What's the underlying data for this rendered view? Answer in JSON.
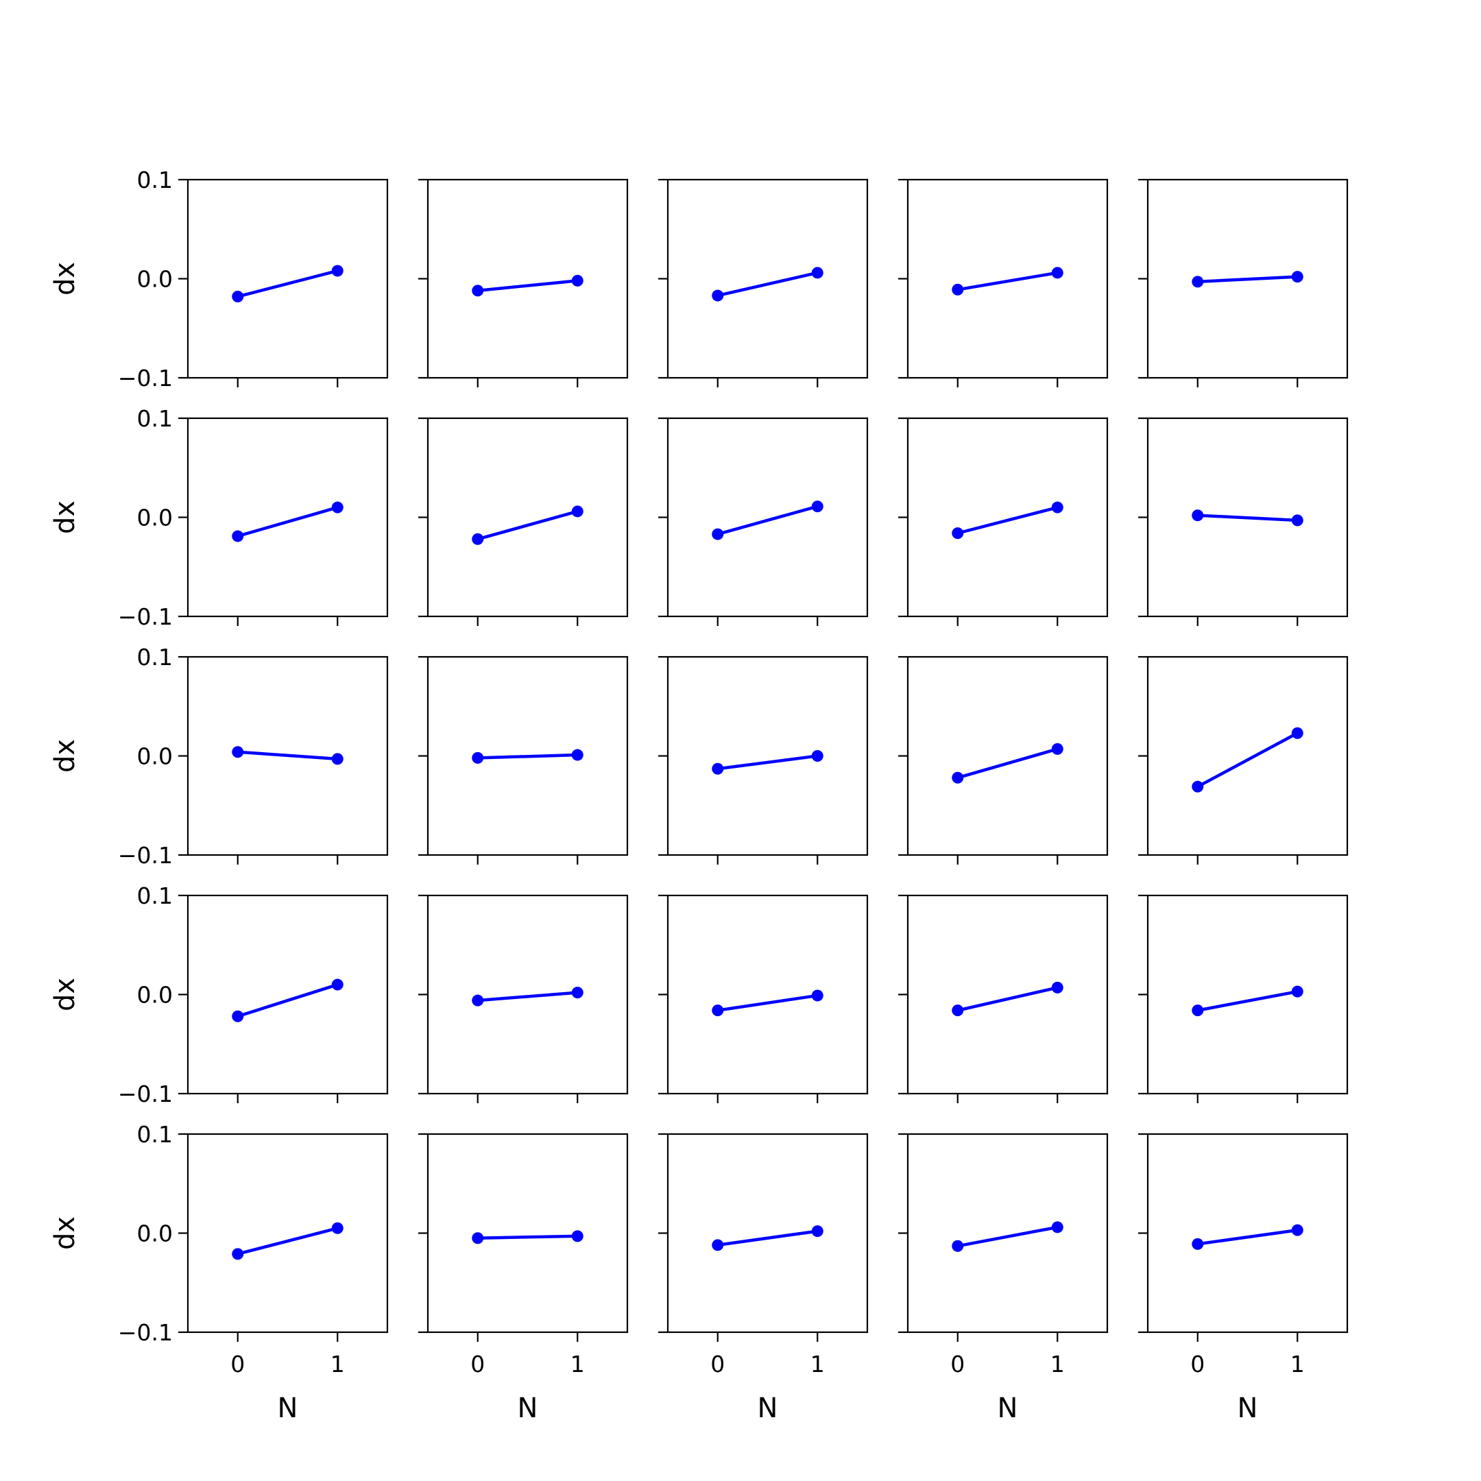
{
  "chart_data": {
    "type": "line",
    "layout": "5x5 grid of subplots",
    "line_color": "#0000ff",
    "marker": "circle",
    "xlabel": "N",
    "ylabel": "dx",
    "x": [
      0,
      1
    ],
    "xticks": [
      "0",
      "1"
    ],
    "xlim": [
      -0.5,
      1.5
    ],
    "ylim": [
      -0.1,
      0.1
    ],
    "yticks": [
      "0.1",
      "0.0",
      "−0.1"
    ],
    "x_labels_shown_on": "bottom row",
    "y_labels_shown_on": "left column",
    "grid": false,
    "subplots": [
      {
        "row": 1,
        "col": 1,
        "values": [
          -0.018,
          0.008
        ]
      },
      {
        "row": 1,
        "col": 2,
        "values": [
          -0.012,
          -0.002
        ]
      },
      {
        "row": 1,
        "col": 3,
        "values": [
          -0.017,
          0.006
        ]
      },
      {
        "row": 1,
        "col": 4,
        "values": [
          -0.011,
          0.006
        ]
      },
      {
        "row": 1,
        "col": 5,
        "values": [
          -0.003,
          0.002
        ]
      },
      {
        "row": 2,
        "col": 1,
        "values": [
          -0.019,
          0.01
        ]
      },
      {
        "row": 2,
        "col": 2,
        "values": [
          -0.022,
          0.006
        ]
      },
      {
        "row": 2,
        "col": 3,
        "values": [
          -0.017,
          0.011
        ]
      },
      {
        "row": 2,
        "col": 4,
        "values": [
          -0.016,
          0.01
        ]
      },
      {
        "row": 2,
        "col": 5,
        "values": [
          0.002,
          -0.003
        ]
      },
      {
        "row": 3,
        "col": 1,
        "values": [
          0.004,
          -0.003
        ]
      },
      {
        "row": 3,
        "col": 2,
        "values": [
          -0.002,
          0.001
        ]
      },
      {
        "row": 3,
        "col": 3,
        "values": [
          -0.013,
          0.0
        ]
      },
      {
        "row": 3,
        "col": 4,
        "values": [
          -0.022,
          0.007
        ]
      },
      {
        "row": 3,
        "col": 5,
        "values": [
          -0.031,
          0.023
        ]
      },
      {
        "row": 4,
        "col": 1,
        "values": [
          -0.022,
          0.01
        ]
      },
      {
        "row": 4,
        "col": 2,
        "values": [
          -0.006,
          0.002
        ]
      },
      {
        "row": 4,
        "col": 3,
        "values": [
          -0.016,
          -0.001
        ]
      },
      {
        "row": 4,
        "col": 4,
        "values": [
          -0.016,
          0.007
        ]
      },
      {
        "row": 4,
        "col": 5,
        "values": [
          -0.016,
          0.003
        ]
      },
      {
        "row": 5,
        "col": 1,
        "values": [
          -0.021,
          0.005
        ]
      },
      {
        "row": 5,
        "col": 2,
        "values": [
          -0.005,
          -0.003
        ]
      },
      {
        "row": 5,
        "col": 3,
        "values": [
          -0.012,
          0.002
        ]
      },
      {
        "row": 5,
        "col": 4,
        "values": [
          -0.013,
          0.006
        ]
      },
      {
        "row": 5,
        "col": 5,
        "values": [
          -0.011,
          0.003
        ]
      }
    ]
  }
}
